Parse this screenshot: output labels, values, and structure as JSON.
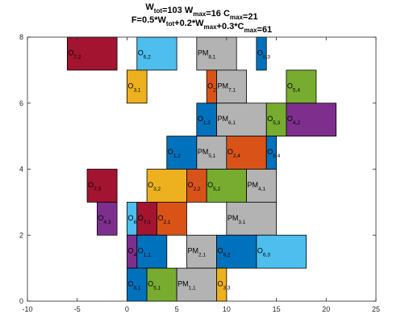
{
  "chart_data": {
    "type": "gantt-blocks",
    "title_line1": [
      {
        "t": "W",
        "sub": "tot"
      },
      {
        "t": "=103  W",
        "sub": "max"
      },
      {
        "t": "=16  C",
        "sub": "max"
      },
      {
        "t": "=21"
      }
    ],
    "title_line2": [
      {
        "t": "F=0.5*W",
        "sub": "tot"
      },
      {
        "t": "+0.2*W",
        "sub": "max"
      },
      {
        "t": "+0.3*C",
        "sub": "max"
      },
      {
        "t": "=61"
      }
    ],
    "xlim": [
      -10,
      25
    ],
    "ylim": [
      0,
      8
    ],
    "xticks": [
      -10,
      -5,
      0,
      5,
      10,
      15,
      20,
      25
    ],
    "yticks": [
      0,
      2,
      4,
      6,
      8
    ],
    "blocks": [
      {
        "x0": -6,
        "x1": -1,
        "y0": 7,
        "y1": 8,
        "color": "#a2142f",
        "base": "O",
        "sub": "7,2"
      },
      {
        "x0": 1,
        "x1": 5,
        "y0": 7,
        "y1": 8,
        "color": "#4dbeee",
        "base": "O",
        "sub": "6,2"
      },
      {
        "x0": 7,
        "x1": 11,
        "y0": 7,
        "y1": 8,
        "color": "#b3b3b3",
        "base": "PM",
        "sub": "8,1"
      },
      {
        "x0": 13,
        "x1": 14,
        "y0": 7,
        "y1": 8,
        "color": "#0072bd",
        "base": "O",
        "sub": "8,3"
      },
      {
        "x0": 0,
        "x1": 2,
        "y0": 6,
        "y1": 7,
        "color": "#edb120",
        "base": "O",
        "sub": "3,1"
      },
      {
        "x0": 8,
        "x1": 9,
        "y0": 6,
        "y1": 7,
        "color": "#d95319",
        "base": "O",
        "sub": "2"
      },
      {
        "x0": 9,
        "x1": 12,
        "y0": 6,
        "y1": 7,
        "color": "#b3b3b3",
        "base": "PM",
        "sub": "7,1"
      },
      {
        "x0": 16,
        "x1": 19,
        "y0": 6,
        "y1": 7,
        "color": "#77ac30",
        "base": "O",
        "sub": "5,4"
      },
      {
        "x0": 7,
        "x1": 9,
        "y0": 5,
        "y1": 6,
        "color": "#0072bd",
        "base": "O",
        "sub": "1,3"
      },
      {
        "x0": 9,
        "x1": 14,
        "y0": 5,
        "y1": 6,
        "color": "#b3b3b3",
        "base": "PM",
        "sub": "6,1"
      },
      {
        "x0": 14,
        "x1": 16,
        "y0": 5,
        "y1": 6,
        "color": "#77ac30",
        "base": "O",
        "sub": "5,3"
      },
      {
        "x0": 16,
        "x1": 21,
        "y0": 5,
        "y1": 6,
        "color": "#7e2f8e",
        "base": "O",
        "sub": "4,2"
      },
      {
        "x0": 4,
        "x1": 7,
        "y0": 4,
        "y1": 5,
        "color": "#0072bd",
        "base": "O",
        "sub": "1,2"
      },
      {
        "x0": 7,
        "x1": 10,
        "y0": 4,
        "y1": 5,
        "color": "#b3b3b3",
        "base": "PM",
        "sub": "5,1"
      },
      {
        "x0": 10,
        "x1": 14,
        "y0": 4,
        "y1": 5,
        "color": "#d95319",
        "base": "O",
        "sub": "2,4"
      },
      {
        "x0": 14,
        "x1": 15,
        "y0": 4,
        "y1": 5,
        "color": "#0072bd",
        "base": "O",
        "sub": "8,4"
      },
      {
        "x0": -4,
        "x1": -1,
        "y0": 3,
        "y1": 4,
        "color": "#a2142f",
        "base": "O",
        "sub": "7,3"
      },
      {
        "x0": 2,
        "x1": 6,
        "y0": 3,
        "y1": 4,
        "color": "#edb120",
        "base": "O",
        "sub": "3,2"
      },
      {
        "x0": 6,
        "x1": 8,
        "y0": 3,
        "y1": 4,
        "color": "#d95319",
        "base": "O",
        "sub": "2,2"
      },
      {
        "x0": 8,
        "x1": 12,
        "y0": 3,
        "y1": 4,
        "color": "#77ac30",
        "base": "O",
        "sub": "5,2"
      },
      {
        "x0": 12,
        "x1": 15,
        "y0": 3,
        "y1": 4,
        "color": "#b3b3b3",
        "base": "PM",
        "sub": "4,1"
      },
      {
        "x0": -3,
        "x1": -1,
        "y0": 2,
        "y1": 3,
        "color": "#7e2f8e",
        "base": "O",
        "sub": "4,3"
      },
      {
        "x0": 0,
        "x1": 1,
        "y0": 2,
        "y1": 3,
        "color": "#4dbeee",
        "base": "O",
        "sub": "6"
      },
      {
        "x0": 1,
        "x1": 3,
        "y0": 2,
        "y1": 3,
        "color": "#a2142f",
        "base": "O",
        "sub": "7,1"
      },
      {
        "x0": 3,
        "x1": 6,
        "y0": 2,
        "y1": 3,
        "color": "#d95319",
        "base": "O",
        "sub": "2,1"
      },
      {
        "x0": 10,
        "x1": 15,
        "y0": 2,
        "y1": 3,
        "color": "#b3b3b3",
        "base": "PM",
        "sub": "3,1"
      },
      {
        "x0": 0,
        "x1": 1,
        "y0": 1,
        "y1": 2,
        "color": "#7e2f8e",
        "base": "O",
        "sub": "4,1"
      },
      {
        "x0": 1,
        "x1": 4,
        "y0": 1,
        "y1": 2,
        "color": "#0072bd",
        "base": "O",
        "sub": "1,1"
      },
      {
        "x0": 6,
        "x1": 9,
        "y0": 1,
        "y1": 2,
        "color": "#b3b3b3",
        "base": "PM",
        "sub": "2,1"
      },
      {
        "x0": 9,
        "x1": 13,
        "y0": 1,
        "y1": 2,
        "color": "#0072bd",
        "base": "O",
        "sub": "8,2"
      },
      {
        "x0": 13,
        "x1": 18,
        "y0": 1,
        "y1": 2,
        "color": "#4dbeee",
        "base": "O",
        "sub": "6,3"
      },
      {
        "x0": 0,
        "x1": 2,
        "y0": 0,
        "y1": 1,
        "color": "#0072bd",
        "base": "O",
        "sub": "8,1"
      },
      {
        "x0": 2,
        "x1": 5,
        "y0": 0,
        "y1": 1,
        "color": "#77ac30",
        "base": "O",
        "sub": "5,1"
      },
      {
        "x0": 5,
        "x1": 9,
        "y0": 0,
        "y1": 1,
        "color": "#b3b3b3",
        "base": "PM",
        "sub": "1,1"
      },
      {
        "x0": 9,
        "x1": 10,
        "y0": 0,
        "y1": 1,
        "color": "#edb120",
        "base": "O",
        "sub": "3,3"
      }
    ]
  }
}
